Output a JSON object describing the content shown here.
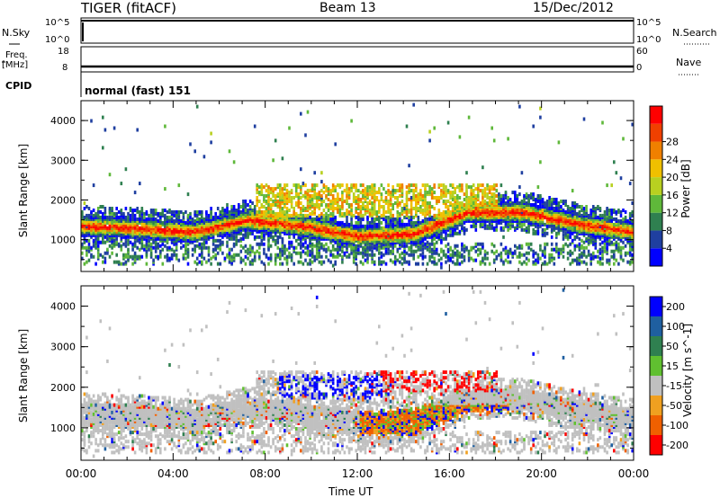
{
  "header": {
    "radar": "TIGER (fitACF)",
    "beam": "Beam 13",
    "date": "15/Dec/2012"
  },
  "strips": {
    "nsky_label": "N.Sky",
    "nsky_top": "10^5",
    "nsky_bottom": "10^0",
    "nsearch_label": "N.Search",
    "nsearch_top": "10^5",
    "nsearch_bottom": "10^0",
    "freq_label_1": "Freq.",
    "freq_label_2": "[MHz]",
    "freq_top": "18",
    "freq_bottom": "8",
    "nave_label": "Nave",
    "nave_top": "60",
    "nave_bottom": "0",
    "cpid_label": "CPID",
    "cpid_value": "normal (fast) 151"
  },
  "chart_data": [
    {
      "type": "heatmap",
      "panel": "power",
      "ylabel": "Slant Range [km]",
      "xlabel": "",
      "xlim_hours": [
        0,
        24
      ],
      "ylim_km": [
        200,
        4500
      ],
      "yticks": [
        "1000",
        "2000",
        "3000",
        "4000"
      ],
      "colorbar": {
        "label": "Power [dB]",
        "ticks": [
          "4",
          "8",
          "12",
          "16",
          "20",
          "24",
          "28"
        ],
        "colors": [
          "#0000ff",
          "#1f3fa0",
          "#2f8050",
          "#5fb83a",
          "#b8d020",
          "#f0c000",
          "#f08000",
          "#f04000",
          "#ff0000"
        ]
      },
      "bands": [
        {
          "name": "main-echo",
          "from_h": 0,
          "to_h": 24,
          "center_km": [
            1350,
            1300,
            1200,
            1500,
            1350,
            1100,
            1150,
            1700,
            1700,
            1400,
            1200
          ],
          "value_db": 22
        },
        {
          "name": "upper-scatter",
          "from_h": 7.5,
          "to_h": 18,
          "center_km": [
            2000,
            2100,
            2000,
            1900,
            1800
          ],
          "value_db": 16
        }
      ]
    },
    {
      "type": "heatmap",
      "panel": "velocity",
      "ylabel": "Slant Range [km]",
      "xlabel": "Time UT",
      "xlim_hours": [
        0,
        24
      ],
      "ylim_km": [
        200,
        4500
      ],
      "xticks": [
        "00:00",
        "04:00",
        "08:00",
        "12:00",
        "16:00",
        "20:00",
        "00:00"
      ],
      "yticks": [
        "1000",
        "2000",
        "3000",
        "4000"
      ],
      "colorbar": {
        "label": "Velocity [m s^-1]",
        "ticks": [
          "200",
          "100",
          "50",
          "15",
          "-15",
          "-50",
          "-100",
          "-200"
        ],
        "colors": [
          "#0000ff",
          "#1f5fa0",
          "#2f8050",
          "#60c030",
          "#c0c0c0",
          "#f0a020",
          "#f06000",
          "#ff0000"
        ]
      }
    }
  ]
}
